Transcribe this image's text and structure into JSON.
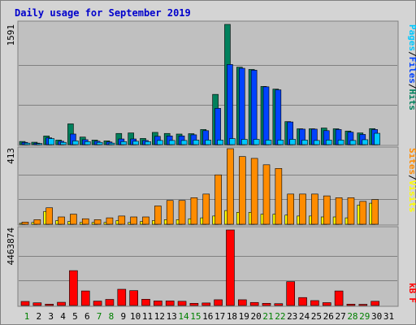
{
  "colors": {
    "frame": "#d4d4d4",
    "panel": "#c0c0c0",
    "title": "#0000cc",
    "hits": "#00805c",
    "files": "#0042ff",
    "pages": "#00c8ff",
    "visits": "#ffff00",
    "sites": "#ff8c00",
    "kbf": "#ff0000",
    "weekday": "#000000",
    "weekend": "#008000"
  },
  "chart_data": [
    {
      "type": "bar",
      "title": "Daily usage for September 2019",
      "y_max_label": "1591",
      "ylim": [
        0,
        1591
      ],
      "legend": [
        "Pages",
        "/",
        "Files",
        "/",
        "Hits"
      ],
      "categories": [
        "1",
        "2",
        "3",
        "4",
        "5",
        "6",
        "7",
        "8",
        "9",
        "10",
        "11",
        "12",
        "13",
        "14",
        "15",
        "16",
        "17",
        "18",
        "19",
        "20",
        "21",
        "22",
        "23",
        "24",
        "25",
        "26",
        "27",
        "28",
        "29",
        "30",
        "31"
      ],
      "series": [
        {
          "name": "Hits",
          "values": [
            42,
            32,
            115,
            60,
            275,
            100,
            60,
            50,
            148,
            155,
            82,
            162,
            148,
            140,
            145,
            200,
            665,
            1591,
            1025,
            995,
            770,
            735,
            305,
            210,
            210,
            220,
            210,
            180,
            155,
            212,
            0
          ]
        },
        {
          "name": "Files",
          "values": [
            30,
            20,
            90,
            45,
            140,
            65,
            45,
            35,
            75,
            75,
            55,
            110,
            115,
            115,
            130,
            185,
            480,
            1060,
            1010,
            985,
            765,
            725,
            300,
            205,
            205,
            185,
            200,
            165,
            135,
            200,
            0
          ]
        },
        {
          "name": "Pages",
          "values": [
            20,
            15,
            80,
            30,
            50,
            40,
            30,
            20,
            40,
            45,
            40,
            55,
            55,
            55,
            60,
            60,
            60,
            80,
            70,
            70,
            60,
            60,
            70,
            60,
            55,
            60,
            60,
            55,
            65,
            150,
            0
          ]
        }
      ]
    },
    {
      "type": "bar",
      "y_max_label": "413",
      "ylim": [
        0,
        413
      ],
      "legend": [
        "Sites",
        "/",
        "Visits"
      ],
      "categories": [
        "1",
        "2",
        "3",
        "4",
        "5",
        "6",
        "7",
        "8",
        "9",
        "10",
        "11",
        "12",
        "13",
        "14",
        "15",
        "16",
        "17",
        "18",
        "19",
        "20",
        "21",
        "22",
        "23",
        "24",
        "25",
        "26",
        "27",
        "28",
        "29",
        "30",
        "31"
      ],
      "series": [
        {
          "name": "Visits",
          "values": [
            5,
            10,
            70,
            20,
            15,
            10,
            10,
            10,
            20,
            10,
            15,
            20,
            25,
            25,
            30,
            35,
            45,
            75,
            65,
            65,
            55,
            55,
            50,
            45,
            45,
            40,
            40,
            35,
            105,
            115,
            0
          ]
        },
        {
          "name": "Sites",
          "values": [
            12,
            25,
            90,
            40,
            55,
            30,
            25,
            35,
            45,
            40,
            40,
            100,
            130,
            130,
            145,
            165,
            270,
            413,
            370,
            360,
            325,
            305,
            165,
            165,
            165,
            155,
            145,
            145,
            125,
            135,
            0
          ]
        }
      ]
    },
    {
      "type": "bar",
      "y_max_label": "4463874",
      "ylim": [
        0,
        4463874
      ],
      "legend": [
        "kB",
        "F"
      ],
      "categories": [
        "1",
        "2",
        "3",
        "4",
        "5",
        "6",
        "7",
        "8",
        "9",
        "10",
        "11",
        "12",
        "13",
        "14",
        "15",
        "16",
        "17",
        "18",
        "19",
        "20",
        "21",
        "22",
        "23",
        "24",
        "25",
        "26",
        "27",
        "28",
        "29",
        "30",
        "31"
      ],
      "series": [
        {
          "name": "kB F",
          "values": [
            240000,
            160000,
            80000,
            190000,
            2060000,
            860000,
            260000,
            360000,
            960000,
            880000,
            370000,
            270000,
            270000,
            250000,
            130000,
            150000,
            340000,
            4463874,
            340000,
            180000,
            130000,
            110000,
            1410000,
            470000,
            290000,
            170000,
            860000,
            80000,
            70000,
            250000,
            0
          ]
        }
      ]
    }
  ],
  "x_axis": {
    "labels": [
      "1",
      "2",
      "3",
      "4",
      "5",
      "6",
      "7",
      "8",
      "9",
      "10",
      "11",
      "12",
      "13",
      "14",
      "15",
      "16",
      "17",
      "18",
      "19",
      "20",
      "21",
      "22",
      "23",
      "24",
      "25",
      "26",
      "27",
      "28",
      "29",
      "30",
      "31"
    ],
    "weekend_days": [
      1,
      7,
      8,
      14,
      15,
      21,
      22,
      28,
      29
    ]
  }
}
